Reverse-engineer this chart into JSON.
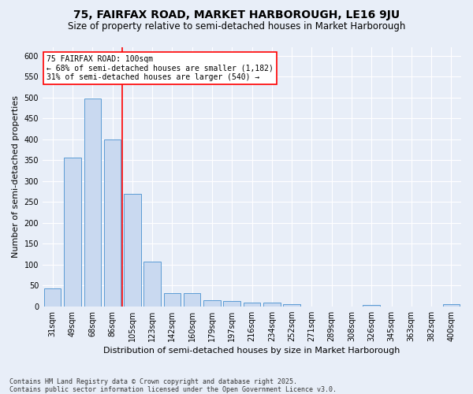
{
  "title": "75, FAIRFAX ROAD, MARKET HARBOROUGH, LE16 9JU",
  "subtitle": "Size of property relative to semi-detached houses in Market Harborough",
  "xlabel": "Distribution of semi-detached houses by size in Market Harborough",
  "ylabel": "Number of semi-detached properties",
  "footnote": "Contains HM Land Registry data © Crown copyright and database right 2025.\nContains public sector information licensed under the Open Government Licence v3.0.",
  "categories": [
    "31sqm",
    "49sqm",
    "68sqm",
    "86sqm",
    "105sqm",
    "123sqm",
    "142sqm",
    "160sqm",
    "179sqm",
    "197sqm",
    "216sqm",
    "234sqm",
    "252sqm",
    "271sqm",
    "289sqm",
    "308sqm",
    "326sqm",
    "345sqm",
    "363sqm",
    "382sqm",
    "400sqm"
  ],
  "values": [
    42,
    355,
    498,
    400,
    270,
    107,
    32,
    32,
    15,
    12,
    8,
    8,
    6,
    0,
    0,
    0,
    4,
    0,
    0,
    0,
    5
  ],
  "bar_color": "#c9d9f0",
  "bar_edge_color": "#5b9bd5",
  "red_line_x": 3.5,
  "annotation_title": "75 FAIRFAX ROAD: 100sqm",
  "annotation_line1": "← 68% of semi-detached houses are smaller (1,182)",
  "annotation_line2": "31% of semi-detached houses are larger (540) →",
  "ylim": [
    0,
    620
  ],
  "yticks": [
    0,
    50,
    100,
    150,
    200,
    250,
    300,
    350,
    400,
    450,
    500,
    550,
    600
  ],
  "background_color": "#e8eef8",
  "plot_bg_color": "#e8eef8",
  "grid_color": "#ffffff",
  "title_fontsize": 10,
  "subtitle_fontsize": 8.5,
  "ylabel_fontsize": 8,
  "xlabel_fontsize": 8,
  "tick_fontsize": 7,
  "annot_fontsize": 7,
  "footnote_fontsize": 6
}
